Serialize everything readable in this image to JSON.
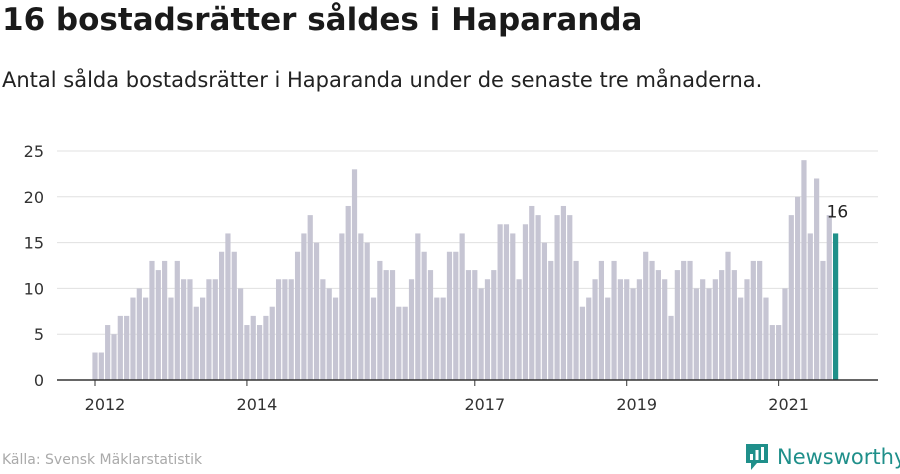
{
  "header": {
    "title": "16 bostadsrätter såldes i Haparanda",
    "subtitle": "Antal sålda bostadsrätter i Haparanda under de senaste tre månaderna."
  },
  "footer": {
    "source": "Källa: Svensk Mäklarstatistik",
    "brand": "Newsworthy"
  },
  "colors": {
    "bar": "#c6c5d3",
    "highlight": "#1f9089",
    "grid": "#e0e0e0",
    "axis": "#333333",
    "brand": "#1f8f8a"
  },
  "chart_data": {
    "type": "bar",
    "title": "16 bostadsrätter såldes i Haparanda",
    "subtitle": "Antal sålda bostadsrätter i Haparanda under de senaste tre månaderna.",
    "xlabel": "",
    "ylabel": "",
    "ylim": [
      0,
      25
    ],
    "yticks": [
      0,
      5,
      10,
      15,
      20,
      25
    ],
    "grid": true,
    "x_tick_labels": [
      {
        "label": "2012",
        "index": 0
      },
      {
        "label": "2014",
        "index": 24
      },
      {
        "label": "2017",
        "index": 60
      },
      {
        "label": "2019",
        "index": 84
      },
      {
        "label": "2021",
        "index": 108
      }
    ],
    "start": "2012-01",
    "interval": "month",
    "values": [
      3,
      3,
      6,
      5,
      7,
      7,
      9,
      10,
      9,
      13,
      12,
      13,
      9,
      13,
      11,
      11,
      8,
      9,
      11,
      11,
      14,
      16,
      14,
      10,
      6,
      7,
      6,
      7,
      8,
      11,
      11,
      11,
      14,
      16,
      18,
      15,
      11,
      10,
      9,
      16,
      19,
      23,
      16,
      15,
      9,
      13,
      12,
      12,
      8,
      8,
      11,
      16,
      14,
      12,
      9,
      9,
      14,
      14,
      16,
      12,
      12,
      10,
      11,
      12,
      17,
      17,
      16,
      11,
      17,
      19,
      18,
      15,
      13,
      18,
      19,
      18,
      13,
      8,
      9,
      11,
      13,
      9,
      13,
      11,
      11,
      10,
      11,
      14,
      13,
      12,
      11,
      7,
      12,
      13,
      13,
      10,
      11,
      10,
      11,
      12,
      14,
      12,
      9,
      11,
      13,
      13,
      9,
      6,
      6,
      10,
      18,
      20,
      24,
      16,
      22,
      13,
      18,
      16
    ],
    "highlight_last": true,
    "last_value_label": "16"
  }
}
